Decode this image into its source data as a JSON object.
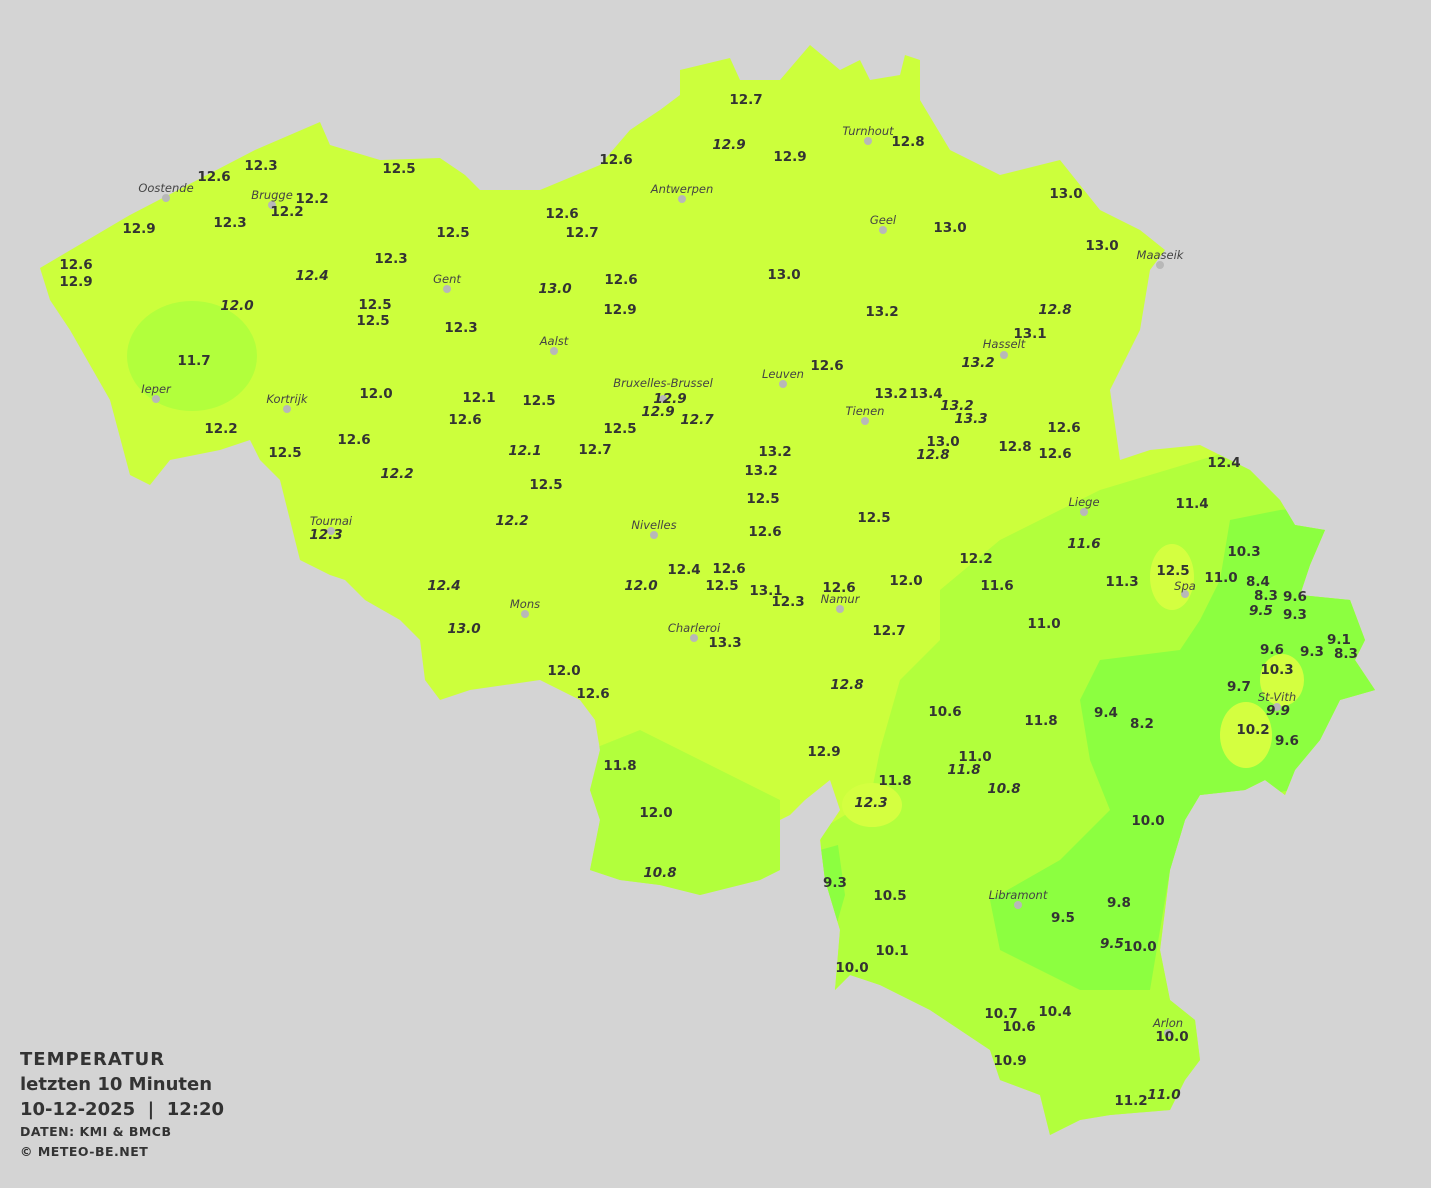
{
  "map": {
    "colors": {
      "background": "#d4d4d4",
      "base": "#ccff3c",
      "medium": "#b2ff3c",
      "cool": "#8cff40",
      "warm_blob": "#d4ff40",
      "text": "#333333"
    },
    "cities": [
      "Oostende",
      "Brugge",
      "Antwerpen",
      "Turnhout",
      "Geel",
      "Maaseik",
      "Gent",
      "Aalst",
      "Hasselt",
      "Leuven",
      "Bruxelles-Brussel",
      "Ieper",
      "Kortrijk",
      "Tienen",
      "Liege",
      "Tournai",
      "Nivelles",
      "Spa",
      "Namur",
      "Mons",
      "Charleroi",
      "St-Vith",
      "Libramont",
      "Arlon"
    ],
    "stations": [
      "12.7",
      "12.9",
      "12.9",
      "12.8",
      "12.6",
      "12.3",
      "12.6",
      "12.5",
      "12.2",
      "12.2",
      "12.9",
      "12.3",
      "12.6",
      "12.7",
      "12.5",
      "13.0",
      "13.0",
      "13.0",
      "12.6",
      "12.9",
      "12.4",
      "12.3",
      "13.0",
      "12.6",
      "13.0",
      "12.0",
      "12.5",
      "12.5",
      "12.9",
      "13.2",
      "12.8",
      "12.3",
      "13.1",
      "13.2",
      "11.7",
      "12.6",
      "12.0",
      "12.1",
      "12.5",
      "12.9",
      "13.2",
      "13.4",
      "12.9",
      "12.7",
      "13.2",
      "13.3",
      "12.6",
      "12.2",
      "12.5",
      "12.6",
      "13.0",
      "12.8",
      "12.8",
      "12.6",
      "12.6",
      "12.1",
      "12.7",
      "13.2",
      "12.5",
      "13.2",
      "12.2",
      "12.5",
      "12.5",
      "12.4",
      "11.4",
      "12.5",
      "12.2",
      "12.6",
      "12.3",
      "11.6",
      "10.3",
      "12.2",
      "12.4",
      "12.6",
      "12.5",
      "13.1",
      "12.0",
      "12.0",
      "12.6",
      "12.4",
      "11.6",
      "11.3",
      "12.5",
      "11.0",
      "8.4",
      "8.3",
      "9.6",
      "9.5",
      "9.3",
      "12.3",
      "11.0",
      "12.7",
      "13.0",
      "9.1",
      "9.3",
      "8.3",
      "9.6",
      "13.3",
      "10.3",
      "12.0",
      "12.6",
      "12.8",
      "9.7",
      "9.9",
      "10.6",
      "9.4",
      "11.8",
      "8.2",
      "10.2",
      "9.6",
      "12.9",
      "11.0",
      "11.8",
      "11.8",
      "11.8",
      "10.8",
      "12.3",
      "12.0",
      "10.0",
      "10.8",
      "9.3",
      "10.5",
      "9.8",
      "9.5",
      "10.1",
      "9.5",
      "10.0",
      "10.0",
      "10.7",
      "10.4",
      "10.6",
      "10.0",
      "10.9",
      "11.2",
      "11.0"
    ]
  },
  "legend": {
    "title": "TEMPERATUR",
    "subtitle": "letzten 10 Minuten",
    "datetime": "10-12-2025  |  12:20",
    "source": "DATEN: KMI & BMCB",
    "copyright": "© METEO-BE.NET"
  }
}
